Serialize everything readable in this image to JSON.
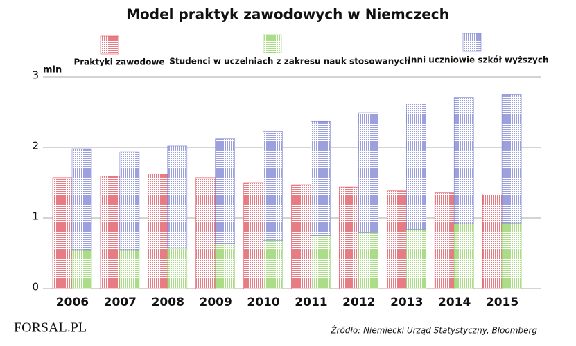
{
  "chart_data": {
    "type": "bar",
    "title": "Model praktyk zawodowych w Niemczech",
    "y_label": "mln",
    "categories": [
      "2006",
      "2007",
      "2008",
      "2009",
      "2010",
      "2011",
      "2012",
      "2013",
      "2014",
      "2015"
    ],
    "series": [
      {
        "name": "Praktyki zawodowe",
        "color": "#e0505a",
        "values": [
          1.57,
          1.59,
          1.62,
          1.57,
          1.5,
          1.47,
          1.44,
          1.39,
          1.36,
          1.34
        ]
      },
      {
        "name": "Studenci w uczelniach z zakresu nauk stosowanych",
        "color": "#8fd060",
        "stacked": true,
        "values": [
          0.55,
          0.55,
          0.57,
          0.64,
          0.68,
          0.75,
          0.8,
          0.84,
          0.92,
          0.93
        ]
      },
      {
        "name": "Inni uczniowie szkół wyższych",
        "color": "#7a80d0",
        "stacked": true,
        "values": [
          1.43,
          1.39,
          1.45,
          1.48,
          1.54,
          1.62,
          1.69,
          1.77,
          1.79,
          1.82
        ]
      }
    ],
    "ylim": [
      0,
      3
    ],
    "yticks": [
      0,
      1,
      2,
      3
    ],
    "grid": true,
    "source": "Źródło:  Niemiecki Urząd Statystyczny, Bloomberg",
    "logo": "FORSAL.PL"
  }
}
